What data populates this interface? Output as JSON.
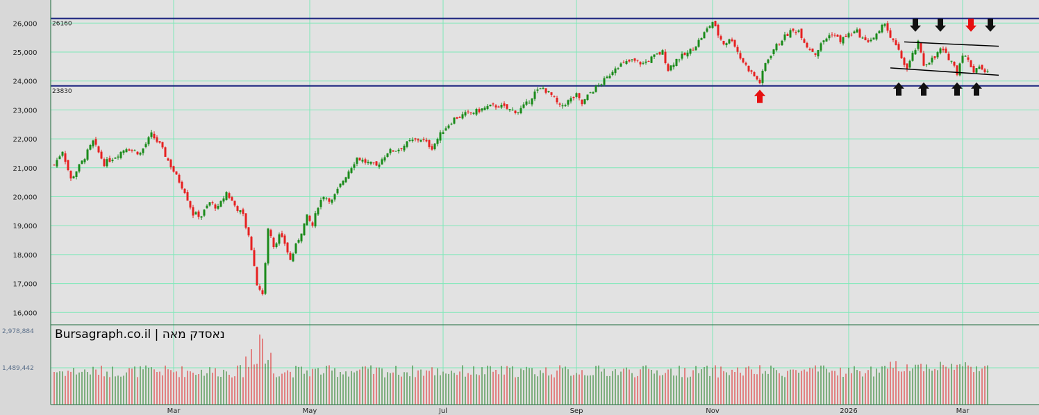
{
  "watermark": "Bursagraph.co.il | נאסדק מאה",
  "chart_data": {
    "type": "candlestick",
    "y_ticks": [
      "26,000",
      "25,000",
      "24,000",
      "23,000",
      "22,000",
      "21,000",
      "20,000",
      "19,000",
      "18,000",
      "17,000",
      "16,000"
    ],
    "y_tick_values": [
      26000,
      25000,
      24000,
      23000,
      22000,
      21000,
      20000,
      19000,
      18000,
      17000,
      16000
    ],
    "ylim": [
      15700,
      26600
    ],
    "x_labels": [
      "Mar",
      "May",
      "Jul",
      "Sep",
      "Nov",
      "2026",
      "Mar"
    ],
    "x_label_index": [
      43,
      92,
      140,
      188,
      237,
      286,
      327
    ],
    "num_sessions": 337,
    "levels": [
      {
        "label": "26160",
        "value": 26160,
        "color": "#1a237e"
      },
      {
        "label": "23830",
        "value": 23830,
        "color": "#1a237e"
      }
    ],
    "volume": {
      "ticks": [
        "2,978,884",
        "1,489,442"
      ],
      "tick_values": [
        2978884,
        1489442
      ],
      "up_color": "#1a7a1a",
      "down_color": "#e02020"
    },
    "colors": {
      "up": "#1a8a1a",
      "down": "#e62020",
      "grid": "#7ee8b8",
      "bg": "#e2e2e2"
    },
    "anchors": [
      [
        0,
        21100
      ],
      [
        3,
        21600
      ],
      [
        6,
        20600
      ],
      [
        10,
        21200
      ],
      [
        14,
        21900
      ],
      [
        18,
        21150
      ],
      [
        22,
        21400
      ],
      [
        26,
        21700
      ],
      [
        31,
        21500
      ],
      [
        35,
        22150
      ],
      [
        38,
        21800
      ],
      [
        41,
        21250
      ],
      [
        44,
        20700
      ],
      [
        47,
        20200
      ],
      [
        50,
        19400
      ],
      [
        53,
        19350
      ],
      [
        56,
        19800
      ],
      [
        59,
        19600
      ],
      [
        62,
        20150
      ],
      [
        65,
        19700
      ],
      [
        68,
        19350
      ],
      [
        71,
        18200
      ],
      [
        73,
        17000
      ],
      [
        75,
        16600
      ],
      [
        77,
        18900
      ],
      [
        79,
        18300
      ],
      [
        81,
        18650
      ],
      [
        83,
        18400
      ],
      [
        85,
        17800
      ],
      [
        87,
        18300
      ],
      [
        89,
        18800
      ],
      [
        91,
        19300
      ],
      [
        93,
        19000
      ],
      [
        95,
        19700
      ],
      [
        97,
        20050
      ],
      [
        100,
        19850
      ],
      [
        103,
        20400
      ],
      [
        106,
        20900
      ],
      [
        109,
        21350
      ],
      [
        112,
        21200
      ],
      [
        116,
        21050
      ],
      [
        120,
        21550
      ],
      [
        124,
        21650
      ],
      [
        128,
        21900
      ],
      [
        132,
        22000
      ],
      [
        136,
        21700
      ],
      [
        140,
        22300
      ],
      [
        144,
        22700
      ],
      [
        148,
        22850
      ],
      [
        152,
        22950
      ],
      [
        156,
        23100
      ],
      [
        160,
        23150
      ],
      [
        164,
        23000
      ],
      [
        167,
        22950
      ],
      [
        170,
        23200
      ],
      [
        173,
        23600
      ],
      [
        176,
        23750
      ],
      [
        179,
        23500
      ],
      [
        182,
        23100
      ],
      [
        185,
        23300
      ],
      [
        188,
        23500
      ],
      [
        190,
        23200
      ],
      [
        193,
        23600
      ],
      [
        196,
        23850
      ],
      [
        199,
        24100
      ],
      [
        202,
        24500
      ],
      [
        205,
        24600
      ],
      [
        208,
        24700
      ],
      [
        212,
        24600
      ],
      [
        216,
        24850
      ],
      [
        219,
        25000
      ],
      [
        221,
        24400
      ],
      [
        224,
        24750
      ],
      [
        228,
        24950
      ],
      [
        231,
        25250
      ],
      [
        234,
        25650
      ],
      [
        237,
        26050
      ],
      [
        239,
        25600
      ],
      [
        241,
        25300
      ],
      [
        244,
        25450
      ],
      [
        247,
        24800
      ],
      [
        250,
        24400
      ],
      [
        253,
        24050
      ],
      [
        254,
        23950
      ],
      [
        256,
        24600
      ],
      [
        259,
        25100
      ],
      [
        262,
        25450
      ],
      [
        265,
        25700
      ],
      [
        268,
        25750
      ],
      [
        271,
        25200
      ],
      [
        274,
        24950
      ],
      [
        277,
        25400
      ],
      [
        280,
        25650
      ],
      [
        283,
        25400
      ],
      [
        286,
        25600
      ],
      [
        289,
        25700
      ],
      [
        292,
        25350
      ],
      [
        295,
        25500
      ],
      [
        297,
        25650
      ],
      [
        299,
        26050
      ],
      [
        301,
        25500
      ],
      [
        303,
        25200
      ],
      [
        305,
        24800
      ],
      [
        307,
        24400
      ],
      [
        309,
        24900
      ],
      [
        311,
        25300
      ],
      [
        313,
        24550
      ],
      [
        315,
        24700
      ],
      [
        317,
        24800
      ],
      [
        319,
        25100
      ],
      [
        321,
        24900
      ],
      [
        323,
        24700
      ],
      [
        325,
        24300
      ],
      [
        327,
        24950
      ],
      [
        329,
        24700
      ],
      [
        331,
        24350
      ],
      [
        333,
        24550
      ],
      [
        335,
        24250
      ],
      [
        336,
        24400
      ]
    ],
    "annotations": [
      {
        "type": "arrow-up",
        "color": "#e61010",
        "index": 254,
        "value": 23700
      },
      {
        "type": "arrow-down",
        "color": "#111111",
        "index": 310,
        "value": 25700
      },
      {
        "type": "arrow-down",
        "color": "#111111",
        "index": 319,
        "value": 25700
      },
      {
        "type": "arrow-down",
        "color": "#e61010",
        "index": 330,
        "value": 25700
      },
      {
        "type": "arrow-down",
        "color": "#111111",
        "index": 337,
        "value": 25700
      },
      {
        "type": "arrow-up",
        "color": "#111111",
        "index": 304,
        "value": 23950
      },
      {
        "type": "arrow-up",
        "color": "#111111",
        "index": 313,
        "value": 23950
      },
      {
        "type": "arrow-up",
        "color": "#111111",
        "index": 325,
        "value": 23950
      },
      {
        "type": "arrow-up",
        "color": "#111111",
        "index": 332,
        "value": 23950
      }
    ],
    "trendlines": [
      {
        "from": [
          306,
          25350
        ],
        "to": [
          340,
          25200
        ]
      },
      {
        "from": [
          301,
          24450
        ],
        "to": [
          340,
          24200
        ]
      }
    ]
  }
}
